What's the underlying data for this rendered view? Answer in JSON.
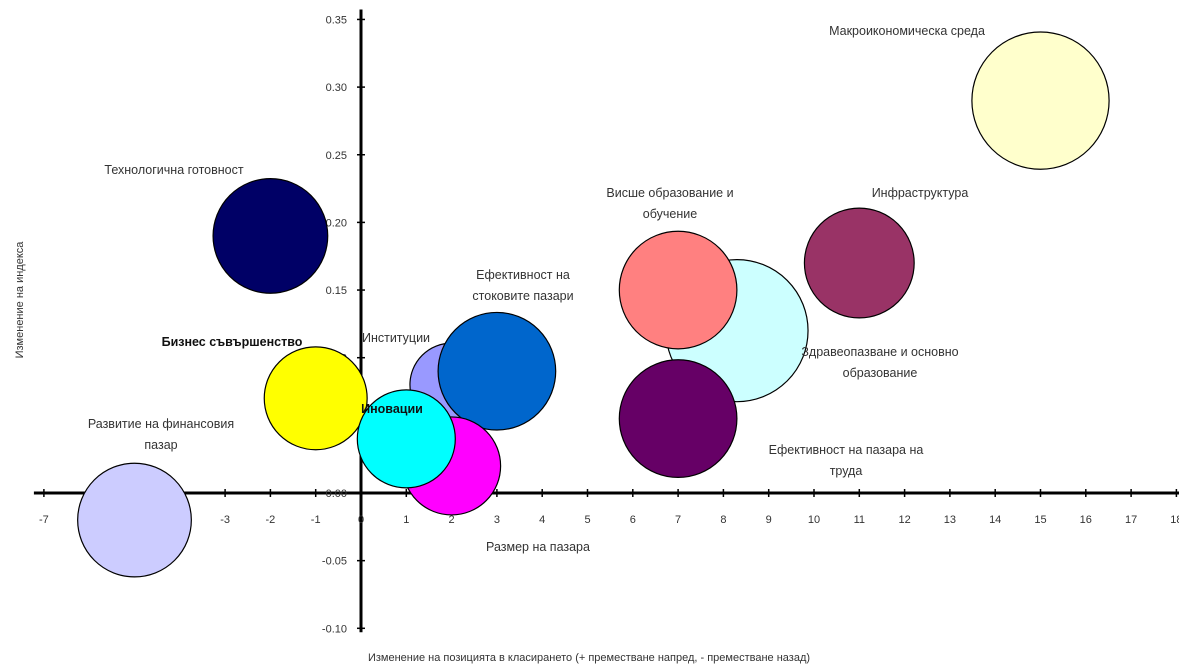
{
  "chart_data": {
    "type": "bubble",
    "xlabel": "Изменение на позицията в класирането (+ преместване напред, - преместване назад)",
    "ylabel": "Изменение на индекса",
    "xlim": [
      -7,
      18
    ],
    "ylim": [
      -0.1,
      0.35
    ],
    "x_ticks": [
      -7,
      -6,
      -5,
      -4,
      -3,
      -2,
      -1,
      0,
      1,
      2,
      3,
      4,
      5,
      6,
      7,
      8,
      9,
      10,
      11,
      12,
      13,
      14,
      15,
      16,
      17,
      18
    ],
    "y_ticks": [
      {
        "value": 0.35,
        "label": "0.35"
      },
      {
        "value": 0.3,
        "label": "0.30"
      },
      {
        "value": 0.25,
        "label": "0.25"
      },
      {
        "value": 0.2,
        "label": "0.20"
      },
      {
        "value": 0.15,
        "label": "0.15"
      },
      {
        "value": 0.1,
        "label": "0.10"
      },
      {
        "value": 0.05,
        "label": "0.05"
      },
      {
        "value": 0.0,
        "label": "0.00"
      },
      {
        "value": -0.05,
        "label": "-0.05"
      },
      {
        "value": -0.1,
        "label": "-0.10"
      }
    ],
    "grid": false,
    "legend": "none",
    "series": [
      {
        "name": "Макроикономическа среда",
        "x": 15,
        "y": 0.29,
        "size": 1.4,
        "color": "#FFFFCC",
        "label_lines": [
          "Макроикономическа среда"
        ],
        "bold": false
      },
      {
        "name": "Здравеопазване и основно образование",
        "x": 8.3,
        "y": 0.12,
        "size": 1.45,
        "color": "#CCFFFF",
        "label_lines": [
          "Здравеопазване и основно",
          "образование"
        ],
        "bold": false
      },
      {
        "name": "Технологична готовност",
        "x": -2,
        "y": 0.19,
        "size": 1.17,
        "color": "#000066",
        "label_lines": [
          "Технологична готовност"
        ],
        "bold": false
      },
      {
        "name": "Институции",
        "x": 2,
        "y": 0.08,
        "size": 0.85,
        "color": "#9999FF",
        "label_lines": [
          "Институции"
        ],
        "bold": false
      },
      {
        "name": "Ефективност на стоковите пазари",
        "x": 3,
        "y": 0.09,
        "size": 1.2,
        "color": "#0066CC",
        "label_lines": [
          "Ефективност на",
          "стоковите пазари"
        ],
        "bold": false
      },
      {
        "name": "Размер на пазара",
        "x": 2,
        "y": 0.02,
        "size": 1.0,
        "color": "#FF00FF",
        "label_lines": [
          "Размер на пазара"
        ],
        "bold": false
      },
      {
        "name": "Бизнес съвършенство",
        "x": -1,
        "y": 0.07,
        "size": 1.05,
        "color": "#FFFF00",
        "label_lines": [
          "Бизнес съвършенство"
        ],
        "bold": true
      },
      {
        "name": "Иновации",
        "x": 1,
        "y": 0.04,
        "size": 1.0,
        "color": "#00FFFF",
        "label_lines": [
          "Иновации"
        ],
        "bold": true
      },
      {
        "name": "Развитие на финансовия пазар",
        "x": -5,
        "y": -0.02,
        "size": 1.16,
        "color": "#CCCCFF",
        "label_lines": [
          "Развитие на финансовия",
          "пазар"
        ],
        "bold": false
      },
      {
        "name": "Висше образование и обучение",
        "x": 7,
        "y": 0.15,
        "size": 1.2,
        "color": "#FF8080",
        "label_lines": [
          "Висше образование и",
          "обучение"
        ],
        "bold": false
      },
      {
        "name": "Инфраструктура",
        "x": 11,
        "y": 0.17,
        "size": 1.12,
        "color": "#993366",
        "label_lines": [
          "Инфраструктура"
        ],
        "bold": false
      },
      {
        "name": "Ефективност на пазара на труда",
        "x": 7,
        "y": 0.055,
        "size": 1.2,
        "color": "#660066",
        "label_lines": [
          "Ефективност на пазара на",
          "труда"
        ],
        "bold": false
      }
    ]
  }
}
